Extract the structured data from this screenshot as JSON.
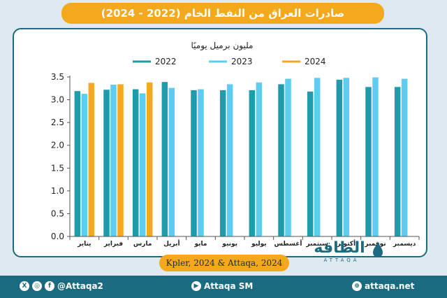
{
  "header": {
    "title": "صادرات العراق من النفط الخام (2022 - 2024)"
  },
  "source": {
    "text": "Kpler, 2024 & Attaqa, 2024"
  },
  "logo": {
    "text": "الطاقة",
    "sub": "ATTAQA"
  },
  "footer": {
    "social_handle": "@Attaqa2",
    "youtube": "Attaqa SM",
    "website": "attaqa.net"
  },
  "colors": {
    "y2022": "#1f9cab",
    "y2023": "#5ccdf0",
    "y2024": "#f6a821",
    "brand": "#1b6a80",
    "accent": "#f4a81c"
  },
  "chart_data": {
    "type": "bar",
    "title": "مليون برميل يوميًا",
    "categories": [
      "يناير",
      "فبراير",
      "مارس",
      "أبريل",
      "مايو",
      "يونيو",
      "يوليو",
      "أغسطس",
      "سبتمبر",
      "أكتوبر",
      "نوفمبر",
      "ديسمبر"
    ],
    "series": [
      {
        "name": "2022",
        "color": "#1f9cab",
        "values": [
          3.19,
          3.22,
          3.23,
          3.39,
          3.21,
          3.21,
          3.21,
          3.34,
          3.18,
          3.44,
          3.28,
          3.28
        ]
      },
      {
        "name": "2023",
        "color": "#5ccdf0",
        "values": [
          3.13,
          3.33,
          3.14,
          3.26,
          3.23,
          3.34,
          3.38,
          3.46,
          3.48,
          3.48,
          3.49,
          3.46
        ]
      },
      {
        "name": "2024",
        "color": "#f6a821",
        "values": [
          3.37,
          3.34,
          3.38,
          null,
          null,
          null,
          null,
          null,
          null,
          null,
          null,
          null
        ]
      }
    ],
    "ylim": [
      0,
      3.5
    ],
    "yticks": [
      "0.0",
      "0.5",
      "1.0",
      "1.5",
      "2.0",
      "2.5",
      "3.0",
      "3.5"
    ],
    "legend_position": "top",
    "grid": false
  }
}
